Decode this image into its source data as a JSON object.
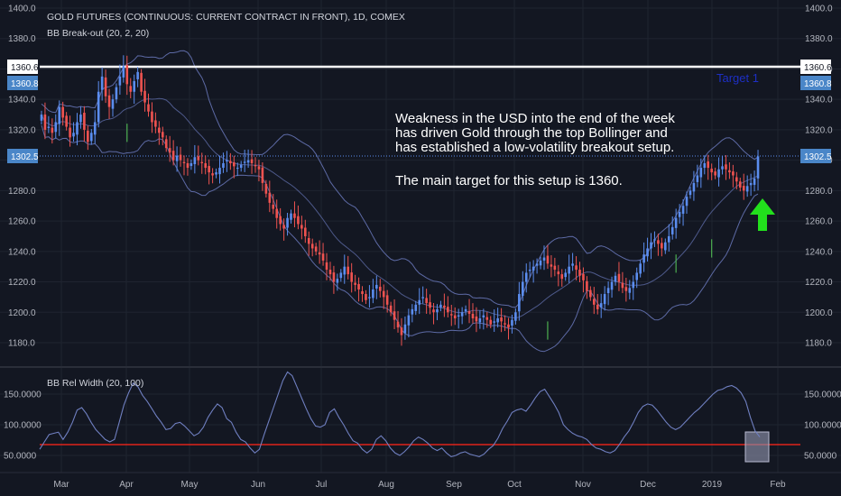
{
  "header": {
    "symbol": "GOLD FUTURES (CONTINUOUS: CURRENT CONTRACT IN FRONT), 1D, COMEX",
    "indicator_main": "BB Break-out (20, 2, 20)",
    "indicator_sub": "BB Rel Width (20, 100)"
  },
  "annotations": {
    "note_lines": [
      "Weakness in the USD into the end of the week",
      "has driven Gold through the top Bollinger and",
      "has established a low-volatility breakout setup.",
      "",
      "The main target for this setup is 1360."
    ],
    "target_label": "Target 1"
  },
  "badges": {
    "hline_value": "1360.6",
    "target_value": "1360.8",
    "last_price": "1302.5"
  },
  "colors": {
    "background": "#131722",
    "up": "#5b8def",
    "down": "#ef5350",
    "band": "#5d6aa5",
    "hline": "#ffffff",
    "signal": "#4caf50",
    "redline": "#e0241b",
    "arrow": "#22e01c"
  },
  "chart_data": [
    {
      "type": "candlestick",
      "title": "GOLD FUTURES (CONTINUOUS: CURRENT CONTRACT IN FRONT), 1D, COMEX",
      "ylim": [
        1168,
        1410
      ],
      "y_ticks": [
        "1180.0",
        "1200.0",
        "1220.0",
        "1240.0",
        "1260.0",
        "1280.0",
        "1300.0",
        "1320.0",
        "1340.0",
        "1360.0",
        "1380.0",
        "1400.0"
      ],
      "x_ticks": [
        "Mar",
        "Apr",
        "May",
        "Jun",
        "Jul",
        "Aug",
        "Sep",
        "Oct",
        "Nov",
        "Dec",
        "2019",
        "Feb"
      ],
      "horizontal_line": 1360.6,
      "target_level": 1360.8,
      "last_price": 1302.5,
      "closes": [
        1330,
        1320,
        1322,
        1318,
        1325,
        1335,
        1328,
        1322,
        1315,
        1318,
        1325,
        1330,
        1320,
        1312,
        1318,
        1325,
        1345,
        1355,
        1342,
        1335,
        1340,
        1348,
        1355,
        1362,
        1350,
        1345,
        1352,
        1358,
        1345,
        1338,
        1332,
        1325,
        1322,
        1318,
        1315,
        1308,
        1305,
        1300,
        1303,
        1300,
        1298,
        1295,
        1298,
        1302,
        1300,
        1298,
        1295,
        1292,
        1290,
        1292,
        1295,
        1298,
        1300,
        1298,
        1296,
        1295,
        1297,
        1299,
        1300,
        1298,
        1296,
        1294,
        1285,
        1278,
        1272,
        1268,
        1262,
        1258,
        1255,
        1262,
        1265,
        1262,
        1258,
        1255,
        1250,
        1245,
        1242,
        1240,
        1238,
        1234,
        1228,
        1225,
        1220,
        1222,
        1226,
        1230,
        1225,
        1220,
        1218,
        1215,
        1212,
        1208,
        1210,
        1215,
        1218,
        1214,
        1210,
        1205,
        1200,
        1195,
        1190,
        1185,
        1192,
        1198,
        1202,
        1205,
        1208,
        1210,
        1206,
        1203,
        1200,
        1202,
        1205,
        1203,
        1200,
        1198,
        1196,
        1198,
        1200,
        1202,
        1199,
        1196,
        1194,
        1196,
        1198,
        1195,
        1192,
        1194,
        1196,
        1194,
        1192,
        1190,
        1195,
        1200,
        1212,
        1220,
        1226,
        1228,
        1230,
        1232,
        1234,
        1236,
        1232,
        1230,
        1228,
        1225,
        1222,
        1226,
        1230,
        1232,
        1228,
        1224,
        1221,
        1214,
        1210,
        1205,
        1202,
        1206,
        1212,
        1216,
        1220,
        1224,
        1220,
        1216,
        1214,
        1216,
        1220,
        1226,
        1232,
        1238,
        1242,
        1246,
        1248,
        1245,
        1242,
        1246,
        1250,
        1256,
        1262,
        1266,
        1270,
        1276,
        1280,
        1285,
        1290,
        1295,
        1298,
        1295,
        1292,
        1290,
        1294,
        1296,
        1294,
        1292,
        1290,
        1286,
        1282,
        1280,
        1283,
        1285,
        1288,
        1302.5
      ],
      "volatility_signals": [
        "Apr",
        "Oct",
        "Dec"
      ],
      "series": [
        {
          "name": "Upper band",
          "kind": "band"
        },
        {
          "name": "Basis",
          "kind": "band"
        },
        {
          "name": "Lower band",
          "kind": "band"
        }
      ]
    },
    {
      "type": "line",
      "title": "BB Rel Width (20, 100)",
      "ylim": [
        30,
        195
      ],
      "y_ticks": [
        "50.0000",
        "100.0000",
        "150.0000"
      ],
      "threshold": 66,
      "series": [
        {
          "name": "BB Rel Width",
          "values": [
            60,
            72,
            84,
            86,
            88,
            76,
            88,
            104,
            124,
            128,
            118,
            104,
            92,
            84,
            76,
            72,
            76,
            104,
            132,
            152,
            168,
            162,
            148,
            138,
            126,
            114,
            104,
            92,
            94,
            102,
            104,
            98,
            90,
            82,
            86,
            96,
            112,
            124,
            134,
            128,
            110,
            104,
            88,
            76,
            72,
            62,
            54,
            60,
            84,
            106,
            128,
            150,
            172,
            186,
            180,
            162,
            144,
            126,
            110,
            98,
            96,
            100,
            120,
            126,
            112,
            100,
            86,
            74,
            70,
            60,
            54,
            60,
            76,
            82,
            74,
            62,
            54,
            50,
            56,
            64,
            74,
            80,
            76,
            70,
            62,
            58,
            62,
            54,
            48,
            50,
            54,
            56,
            52,
            50,
            48,
            52,
            60,
            66,
            78,
            94,
            106,
            120,
            124,
            126,
            122,
            132,
            144,
            154,
            158,
            146,
            134,
            120,
            100,
            92,
            86,
            82,
            80,
            76,
            68,
            62,
            60,
            56,
            54,
            58,
            68,
            80,
            90,
            104,
            120,
            130,
            134,
            132,
            124,
            114,
            104,
            96,
            92,
            96,
            104,
            112,
            120,
            126,
            134,
            142,
            150,
            156,
            158,
            162,
            164,
            160,
            152,
            138,
            112,
            90,
            80
          ]
        }
      ]
    }
  ]
}
